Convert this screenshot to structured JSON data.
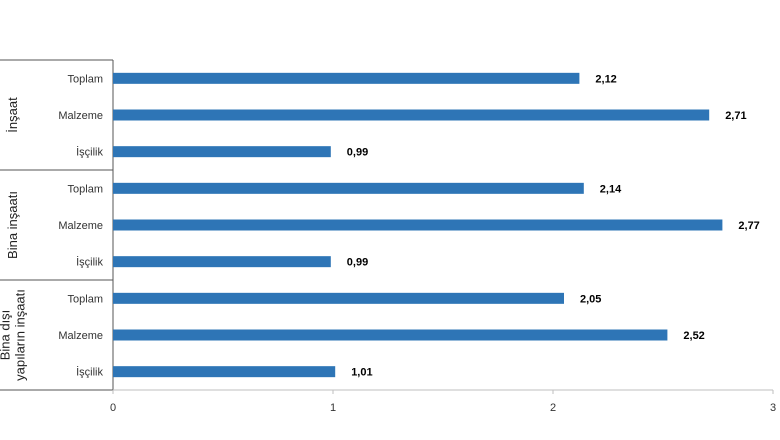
{
  "chart_data": {
    "type": "bar",
    "orientation": "horizontal",
    "title": "",
    "xlabel": "",
    "ylabel": "",
    "xlim": [
      0,
      3
    ],
    "x_ticks": [
      "0",
      "1",
      "2",
      "3"
    ],
    "grid": false,
    "bar_color": "#2E75B6",
    "groups": [
      {
        "label_lines": [
          "İnşaat"
        ],
        "bars": [
          {
            "category": "Toplam",
            "value": 2.12,
            "label": "2,12"
          },
          {
            "category": "Malzeme",
            "value": 2.71,
            "label": "2,71"
          },
          {
            "category": "İşçilik",
            "value": 0.99,
            "label": "0,99"
          }
        ]
      },
      {
        "label_lines": [
          "Bina inşaatı"
        ],
        "bars": [
          {
            "category": "Toplam",
            "value": 2.14,
            "label": "2,14"
          },
          {
            "category": "Malzeme",
            "value": 2.77,
            "label": "2,77"
          },
          {
            "category": "İşçilik",
            "value": 0.99,
            "label": "0,99"
          }
        ]
      },
      {
        "label_lines": [
          "Bina dışı",
          "yapıların inşaatı"
        ],
        "bars": [
          {
            "category": "Toplam",
            "value": 2.05,
            "label": "2,05"
          },
          {
            "category": "Malzeme",
            "value": 2.52,
            "label": "2,52"
          },
          {
            "category": "İşçilik",
            "value": 1.01,
            "label": "1,01"
          }
        ]
      }
    ]
  }
}
